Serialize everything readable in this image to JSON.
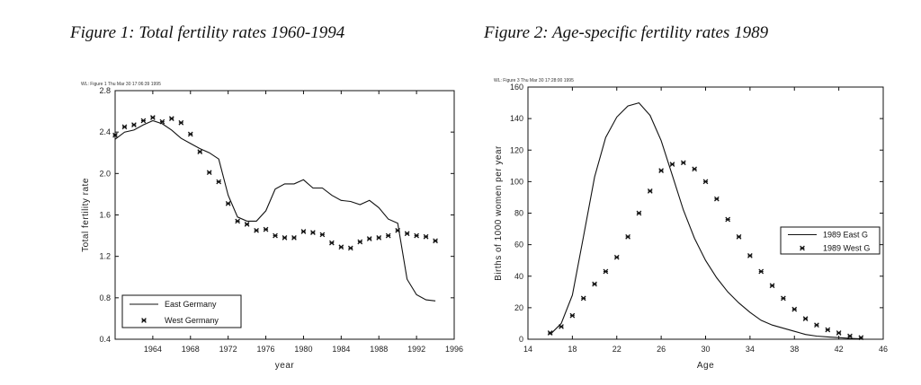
{
  "figure1": {
    "title": "Figure 1: Total fertility rates 1960-1994"
  },
  "figure2": {
    "title": "Figure 2: Age-specific fertility rates 1989"
  },
  "chart_data": [
    {
      "type": "line",
      "stamp": "WL: Figure 1 Thu Mar 30 17:06:39 1995",
      "xlabel": "year",
      "ylabel": "Total fertility rate",
      "xlim": [
        1960,
        1996
      ],
      "ylim": [
        0.4,
        2.8
      ],
      "xticks": [
        1964,
        1968,
        1972,
        1976,
        1980,
        1984,
        1988,
        1992,
        1996
      ],
      "xtick_labels": [
        "1964",
        "1968",
        "1972",
        "1976",
        "1980",
        "1984",
        "1988",
        "1992",
        "1996"
      ],
      "yticks": [
        0.4,
        0.8,
        1.2,
        1.6,
        2.0,
        2.4,
        2.8
      ],
      "ytick_labels": [
        "0.4",
        "0.8",
        "1.2",
        "1.6",
        "2.0",
        "2.4",
        "2.8"
      ],
      "legend": {
        "position": "bottom-left",
        "entries": [
          "East Germany",
          "West Germany"
        ]
      },
      "series": [
        {
          "name": "East Germany",
          "style": "line",
          "x": [
            1960,
            1961,
            1962,
            1963,
            1964,
            1965,
            1966,
            1967,
            1968,
            1969,
            1970,
            1971,
            1972,
            1973,
            1974,
            1975,
            1976,
            1977,
            1978,
            1979,
            1980,
            1981,
            1982,
            1983,
            1984,
            1985,
            1986,
            1987,
            1988,
            1989,
            1990,
            1991,
            1992,
            1993,
            1994
          ],
          "y": [
            2.33,
            2.4,
            2.42,
            2.47,
            2.51,
            2.48,
            2.42,
            2.34,
            2.29,
            2.24,
            2.2,
            2.14,
            1.79,
            1.58,
            1.54,
            1.54,
            1.64,
            1.85,
            1.9,
            1.9,
            1.94,
            1.86,
            1.86,
            1.79,
            1.74,
            1.73,
            1.7,
            1.74,
            1.67,
            1.56,
            1.52,
            0.98,
            0.83,
            0.78,
            0.77
          ]
        },
        {
          "name": "West Germany",
          "style": "markers",
          "x": [
            1960,
            1961,
            1962,
            1963,
            1964,
            1965,
            1966,
            1967,
            1968,
            1969,
            1970,
            1971,
            1972,
            1973,
            1974,
            1975,
            1976,
            1977,
            1978,
            1979,
            1980,
            1981,
            1982,
            1983,
            1984,
            1985,
            1986,
            1987,
            1988,
            1989,
            1990,
            1991,
            1992,
            1993,
            1994
          ],
          "y": [
            2.37,
            2.45,
            2.47,
            2.51,
            2.54,
            2.5,
            2.53,
            2.49,
            2.38,
            2.21,
            2.01,
            1.92,
            1.71,
            1.54,
            1.51,
            1.45,
            1.46,
            1.4,
            1.38,
            1.38,
            1.44,
            1.43,
            1.41,
            1.33,
            1.29,
            1.28,
            1.34,
            1.37,
            1.38,
            1.4,
            1.45,
            1.42,
            1.4,
            1.39,
            1.35
          ]
        }
      ]
    },
    {
      "type": "line",
      "stamp": "WL: Figure 3 Thu Mar 30 17:28:00 1995",
      "xlabel": "Age",
      "ylabel": "Births of 1000 women per year",
      "xlim": [
        14,
        46
      ],
      "ylim": [
        0,
        160
      ],
      "xticks": [
        14,
        18,
        22,
        26,
        30,
        34,
        38,
        42,
        46
      ],
      "xtick_labels": [
        "14",
        "18",
        "22",
        "26",
        "30",
        "34",
        "38",
        "42",
        "46"
      ],
      "yticks": [
        0,
        20,
        40,
        60,
        80,
        100,
        120,
        140,
        160
      ],
      "ytick_labels": [
        "0",
        "20",
        "40",
        "60",
        "80",
        "100",
        "120",
        "140",
        "160"
      ],
      "legend": {
        "position": "right",
        "entries": [
          "1989 East G",
          "1989 West G"
        ]
      },
      "series": [
        {
          "name": "1989 East G",
          "style": "line",
          "x": [
            16,
            17,
            18,
            19,
            20,
            21,
            22,
            23,
            24,
            25,
            26,
            27,
            28,
            29,
            30,
            31,
            32,
            33,
            34,
            35,
            36,
            37,
            38,
            39,
            40,
            41,
            42,
            43,
            44
          ],
          "y": [
            3,
            10,
            28,
            65,
            103,
            128,
            141,
            148,
            150,
            142,
            126,
            104,
            82,
            64,
            50,
            39,
            30,
            23,
            17,
            12,
            9,
            7,
            5,
            3,
            2,
            1.5,
            1,
            0.5,
            0.3
          ]
        },
        {
          "name": "1989 West G",
          "style": "markers",
          "x": [
            16,
            17,
            18,
            19,
            20,
            21,
            22,
            23,
            24,
            25,
            26,
            27,
            28,
            29,
            30,
            31,
            32,
            33,
            34,
            35,
            36,
            37,
            38,
            39,
            40,
            41,
            42,
            43,
            44
          ],
          "y": [
            4,
            8,
            15,
            26,
            35,
            43,
            52,
            65,
            80,
            94,
            107,
            111,
            112,
            108,
            100,
            89,
            76,
            65,
            53,
            43,
            34,
            26,
            19,
            13,
            9,
            6,
            4,
            2,
            1
          ]
        }
      ]
    }
  ]
}
